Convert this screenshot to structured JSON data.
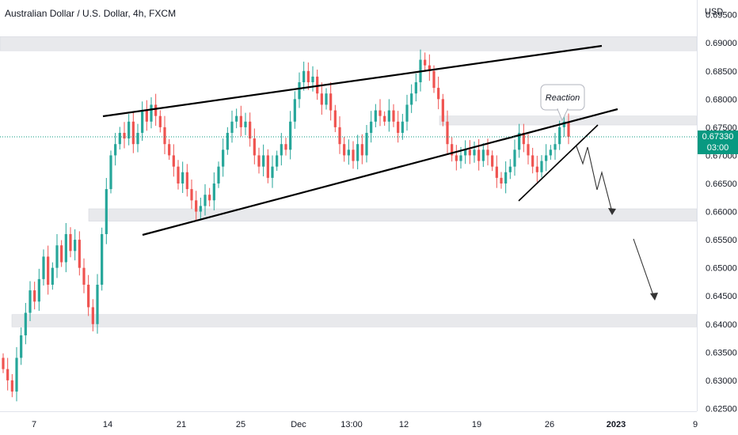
{
  "chart_data": {
    "type": "candlestick",
    "title": "Australian Dollar / U.S. Dollar, 4h, FXCM",
    "currency_label": "USD",
    "y_ticks": [
      "0.69500",
      "0.69000",
      "0.68500",
      "0.68000",
      "0.67500",
      "0.67000",
      "0.66500",
      "0.66000",
      "0.65500",
      "0.65000",
      "0.64500",
      "0.64000",
      "0.63500",
      "0.63000",
      "0.62500"
    ],
    "y_tick_values": [
      0.695,
      0.69,
      0.685,
      0.68,
      0.675,
      0.67,
      0.665,
      0.66,
      0.655,
      0.65,
      0.645,
      0.64,
      0.635,
      0.63,
      0.625
    ],
    "ylim": [
      0.6245,
      0.6972
    ],
    "x_ticks": [
      {
        "label": "7",
        "bold": false
      },
      {
        "label": "14",
        "bold": false
      },
      {
        "label": "21",
        "bold": false
      },
      {
        "label": "25",
        "bold": false
      },
      {
        "label": "Dec",
        "bold": false
      },
      {
        "label": "13:00",
        "bold": false
      },
      {
        "label": "12",
        "bold": false
      },
      {
        "label": "19",
        "bold": false
      },
      {
        "label": "26",
        "bold": false
      },
      {
        "label": "2023",
        "bold": true
      },
      {
        "label": "9",
        "bold": false
      }
    ],
    "current_price": {
      "value": 0.6733,
      "label": "0.67330",
      "countdown": "03:00",
      "color": "#089981"
    },
    "annotation": {
      "text": "Reaction"
    },
    "zones": [
      {
        "from": 0.6886,
        "to": 0.6911
      },
      {
        "from": 0.6754,
        "to": 0.677
      },
      {
        "from": 0.6583,
        "to": 0.6605
      },
      {
        "from": 0.6395,
        "to": 0.6417
      }
    ],
    "colors": {
      "up": "#26a69a",
      "down": "#ef5350",
      "zone": "#e8e9ec",
      "line": "#000000",
      "grid": "#e0e3eb"
    },
    "closes": [
      0.632,
      0.63,
      0.628,
      0.634,
      0.638,
      0.642,
      0.646,
      0.644,
      0.648,
      0.652,
      0.647,
      0.65,
      0.654,
      0.651,
      0.656,
      0.653,
      0.655,
      0.65,
      0.647,
      0.643,
      0.64,
      0.647,
      0.656,
      0.664,
      0.67,
      0.672,
      0.674,
      0.673,
      0.676,
      0.672,
      0.674,
      0.678,
      0.676,
      0.679,
      0.677,
      0.675,
      0.672,
      0.67,
      0.668,
      0.665,
      0.667,
      0.664,
      0.662,
      0.66,
      0.661,
      0.663,
      0.662,
      0.665,
      0.668,
      0.671,
      0.674,
      0.676,
      0.677,
      0.675,
      0.676,
      0.673,
      0.67,
      0.668,
      0.67,
      0.666,
      0.668,
      0.67,
      0.672,
      0.671,
      0.676,
      0.68,
      0.683,
      0.685,
      0.683,
      0.684,
      0.681,
      0.679,
      0.681,
      0.678,
      0.675,
      0.672,
      0.67,
      0.671,
      0.669,
      0.672,
      0.67,
      0.674,
      0.676,
      0.678,
      0.677,
      0.676,
      0.678,
      0.676,
      0.674,
      0.676,
      0.679,
      0.681,
      0.683,
      0.687,
      0.686,
      0.685,
      0.682,
      0.68,
      0.676,
      0.672,
      0.67,
      0.669,
      0.67,
      0.671,
      0.67,
      0.671,
      0.669,
      0.671,
      0.67,
      0.668,
      0.666,
      0.665,
      0.667,
      0.668,
      0.671,
      0.674,
      0.672,
      0.67,
      0.668,
      0.667,
      0.669,
      0.67,
      0.671,
      0.672,
      0.675,
      0.676,
      0.6733
    ]
  }
}
